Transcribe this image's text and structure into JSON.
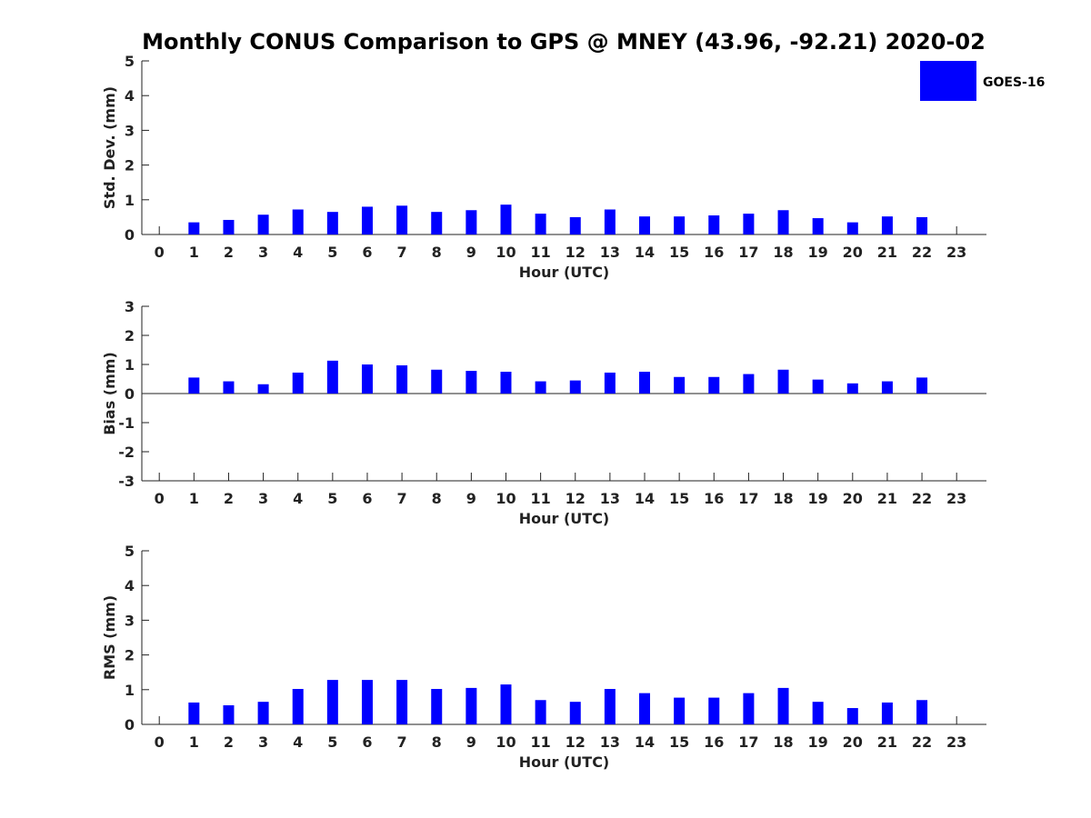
{
  "title": "Monthly CONUS Comparison to GPS @ MNEY (43.96, -92.21) 2020-02",
  "legend": {
    "label": "GOES-16",
    "color": "#0000ff",
    "placement": "top-right"
  },
  "chart_data": [
    {
      "type": "bar",
      "xlabel": "Hour (UTC)",
      "ylabel": "Std. Dev. (mm)",
      "ylim": [
        0,
        5
      ],
      "yticks": [
        "0",
        "1",
        "2",
        "3",
        "4",
        "5"
      ],
      "x": [
        "0",
        "1",
        "2",
        "3",
        "4",
        "5",
        "6",
        "7",
        "8",
        "9",
        "10",
        "11",
        "12",
        "13",
        "14",
        "15",
        "16",
        "17",
        "18",
        "19",
        "20",
        "21",
        "22",
        "23"
      ],
      "series": [
        {
          "name": "GOES-16",
          "values": [
            null,
            0.35,
            0.42,
            0.57,
            0.72,
            0.65,
            0.8,
            0.83,
            0.65,
            0.7,
            0.86,
            0.6,
            0.5,
            0.72,
            0.52,
            0.52,
            0.55,
            0.6,
            0.7,
            0.47,
            0.35,
            0.52,
            0.5,
            null
          ]
        }
      ]
    },
    {
      "type": "bar",
      "xlabel": "Hour (UTC)",
      "ylabel": "Bias (mm)",
      "ylim": [
        -3,
        3
      ],
      "yticks": [
        "-3",
        "-2",
        "-1",
        "0",
        "1",
        "2",
        "3"
      ],
      "x": [
        "0",
        "1",
        "2",
        "3",
        "4",
        "5",
        "6",
        "7",
        "8",
        "9",
        "10",
        "11",
        "12",
        "13",
        "14",
        "15",
        "16",
        "17",
        "18",
        "19",
        "20",
        "21",
        "22",
        "23"
      ],
      "series": [
        {
          "name": "GOES-16",
          "values": [
            null,
            0.55,
            0.42,
            0.32,
            0.72,
            1.13,
            1.0,
            0.97,
            0.82,
            0.78,
            0.75,
            0.42,
            0.45,
            0.72,
            0.75,
            0.57,
            0.57,
            0.67,
            0.82,
            0.48,
            0.35,
            0.42,
            0.55,
            null
          ]
        }
      ]
    },
    {
      "type": "bar",
      "xlabel": "Hour (UTC)",
      "ylabel": "RMS (mm)",
      "ylim": [
        0,
        5
      ],
      "yticks": [
        "0",
        "1",
        "2",
        "3",
        "4",
        "5"
      ],
      "x": [
        "0",
        "1",
        "2",
        "3",
        "4",
        "5",
        "6",
        "7",
        "8",
        "9",
        "10",
        "11",
        "12",
        "13",
        "14",
        "15",
        "16",
        "17",
        "18",
        "19",
        "20",
        "21",
        "22",
        "23"
      ],
      "series": [
        {
          "name": "GOES-16",
          "values": [
            null,
            0.63,
            0.55,
            0.65,
            1.02,
            1.28,
            1.28,
            1.28,
            1.02,
            1.05,
            1.15,
            0.7,
            0.65,
            1.02,
            0.9,
            0.77,
            0.77,
            0.9,
            1.05,
            0.65,
            0.47,
            0.63,
            0.7,
            null
          ]
        }
      ]
    }
  ]
}
